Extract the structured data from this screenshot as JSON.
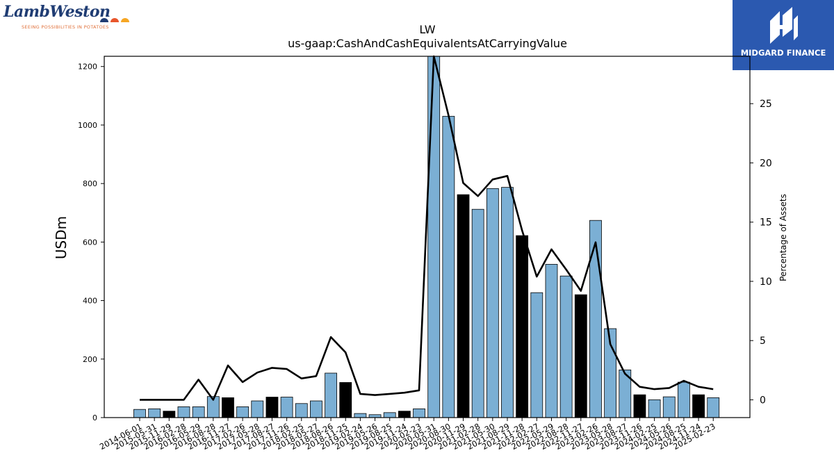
{
  "company_logo": {
    "name": "LambWeston",
    "tagline": "SEEING POSSIBILITIES IN POTATOES"
  },
  "brand_logo": {
    "name": "MIDGARD FINANCE",
    "bg_color": "#2b59b0"
  },
  "chart_data": {
    "type": "bar",
    "title": "LW",
    "subtitle": "us-gaap:CashAndCashEquivalentsAtCarryingValue",
    "ylabel": "USDm",
    "y2label": "Percentage of Assets",
    "ylim": [
      0,
      1235
    ],
    "y2lim": [
      -1.5,
      29
    ],
    "yticks": [
      0,
      200,
      400,
      600,
      800,
      1000,
      1200
    ],
    "y2ticks": [
      0,
      5,
      10,
      15,
      20,
      25
    ],
    "colors": {
      "bar": "#7bafd4",
      "bar_highlight": "#000000",
      "line": "#000000"
    },
    "categories": [
      "2014-06-01",
      "2015-05-31",
      "2015-11-29",
      "2016-02-28",
      "2016-05-29",
      "2016-08-28",
      "2016-11-27",
      "2017-02-26",
      "2017-05-28",
      "2017-08-27",
      "2017-11-26",
      "2018-02-25",
      "2018-05-27",
      "2018-08-26",
      "2018-11-25",
      "2019-02-24",
      "2019-05-26",
      "2019-08-25",
      "2019-11-24",
      "2020-02-23",
      "2020-05-31",
      "2020-08-30",
      "2020-11-29",
      "2021-02-28",
      "2021-05-30",
      "2021-08-29",
      "2021-11-28",
      "2022-02-27",
      "2022-05-29",
      "2022-08-28",
      "2022-11-27",
      "2023-02-26",
      "2023-05-28",
      "2023-08-27",
      "2023-11-26",
      "2024-02-25",
      "2024-05-26",
      "2024-08-25",
      "2024-11-24",
      "2025-02-23"
    ],
    "series": [
      {
        "values": [
          28,
          30,
          22,
          37,
          37,
          72,
          68,
          37,
          57,
          70,
          70,
          48,
          57,
          152,
          120,
          14,
          10,
          17,
          22,
          30,
          1245,
          1030,
          762,
          712,
          783,
          787,
          622,
          427,
          524,
          484,
          420,
          674,
          304,
          163,
          78,
          61,
          71,
          121,
          78,
          68
        ]
      },
      {
        "axis": "right",
        "values": [
          0,
          0,
          0,
          0,
          1.7,
          0,
          2.9,
          1.5,
          2.3,
          2.7,
          2.6,
          1.8,
          2.0,
          5.3,
          4.0,
          0.5,
          0.4,
          0.5,
          0.6,
          0.8,
          29,
          24,
          18.3,
          17.2,
          18.6,
          18.9,
          14.3,
          10.4,
          12.7,
          11.0,
          9.2,
          13.3,
          4.7,
          2.2,
          1.1,
          0.9,
          1.0,
          1.6,
          1.1,
          0.9
        ]
      }
    ],
    "highlight": [
      false,
      false,
      true,
      false,
      false,
      false,
      true,
      false,
      false,
      true,
      false,
      false,
      false,
      false,
      true,
      false,
      false,
      false,
      true,
      false,
      false,
      false,
      true,
      false,
      false,
      false,
      true,
      false,
      false,
      false,
      true,
      false,
      false,
      false,
      true,
      false,
      false,
      false,
      true,
      false
    ]
  }
}
